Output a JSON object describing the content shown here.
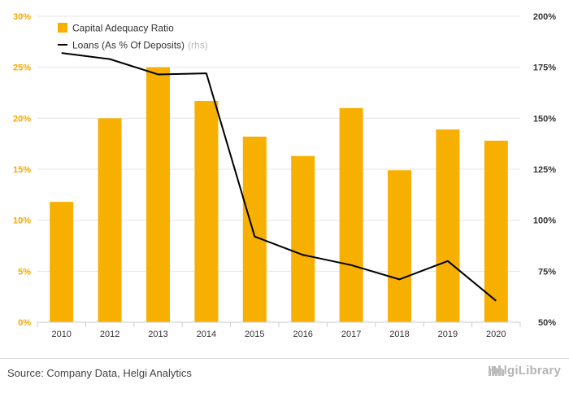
{
  "chart_data": {
    "type": "bar",
    "categories": [
      "2010",
      "2012",
      "2013",
      "2014",
      "2015",
      "2016",
      "2017",
      "2018",
      "2019",
      "2020"
    ],
    "series": [
      {
        "name": "Capital Adequacy Ratio",
        "type": "bar",
        "axis": "left",
        "color": "#f8b000",
        "values": [
          11.8,
          20.0,
          25.0,
          21.7,
          18.2,
          16.3,
          21.0,
          14.9,
          18.9,
          17.8
        ]
      },
      {
        "name": "Loans (As % Of Deposits)",
        "name_suffix": "(rhs)",
        "type": "line",
        "axis": "right",
        "color": "#000000",
        "values": [
          182,
          179,
          171.5,
          172,
          92,
          83,
          78,
          71,
          80,
          60.5
        ]
      }
    ],
    "y_left": {
      "min": 0,
      "max": 30,
      "ticks": [
        0,
        5,
        10,
        15,
        20,
        25,
        30
      ],
      "tick_labels": [
        "0%",
        "5%",
        "10%",
        "15%",
        "20%",
        "25%",
        "30%"
      ],
      "color": "#f5a800"
    },
    "y_right": {
      "min": 50,
      "max": 200,
      "ticks": [
        50,
        75,
        100,
        125,
        150,
        175,
        200
      ],
      "tick_labels": [
        "50%",
        "75%",
        "100%",
        "125%",
        "150%",
        "175%",
        "200%"
      ]
    },
    "grid": true,
    "legend_position": "top-left"
  },
  "footer": {
    "source": "Source: Company Data, Helgi Analytics",
    "logo": "HelgiLibrary"
  }
}
